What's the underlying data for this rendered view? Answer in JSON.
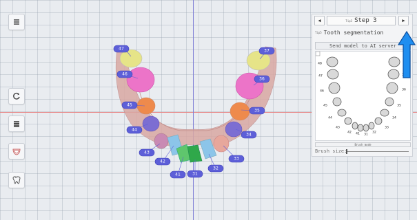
{
  "toolbar": {
    "items": [
      {
        "icon": "menu-icon"
      },
      {
        "icon": "reset-icon"
      },
      {
        "icon": "layers-icon"
      },
      {
        "icon": "jaw-icon"
      },
      {
        "icon": "teeth-icon"
      }
    ]
  },
  "viewport": {
    "teeth_labels": [
      "47",
      "46",
      "45",
      "44",
      "43",
      "42",
      "41",
      "31",
      "32",
      "33",
      "34",
      "35",
      "36",
      "37"
    ],
    "colors": {
      "axis_x": "#e88a8a",
      "axis_y": "#7f7fd6",
      "label_pill": "#5d5fd8",
      "highlight_arrow": "#1f8ef0"
    }
  },
  "panel": {
    "prev_label": "◀",
    "next_label": "▶",
    "step_icon": "Tip3",
    "step_label": "Step 3",
    "segmentation_icon": "Tip5",
    "segmentation_title": "Tooth segmentation",
    "send_button": "Send model to AI server",
    "mini_chart_labels": {
      "left": [
        "48",
        "47",
        "46",
        "45",
        "44",
        "43"
      ],
      "bottom": [
        "42",
        "41",
        "31",
        "32"
      ],
      "right": [
        "37",
        "36",
        "35",
        "34",
        "33"
      ]
    },
    "brush_mode_button": "Brush mode",
    "brush_size_label": "Brush size:"
  }
}
